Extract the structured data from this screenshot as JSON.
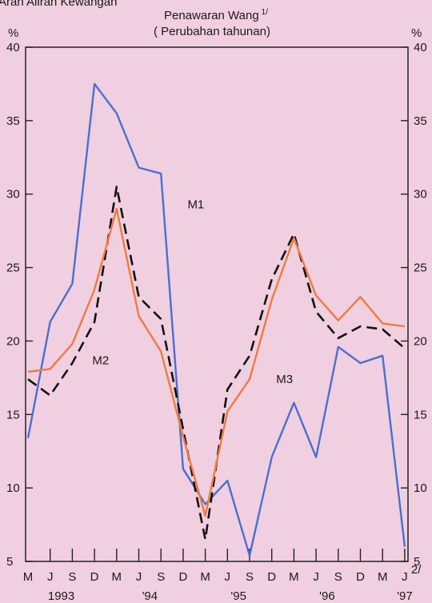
{
  "header": {
    "cut_title": "Aran Aliran Kewangan"
  },
  "chart_data": {
    "type": "line",
    "title": "Penawaran Wang",
    "title_superscript": "1/",
    "subtitle": "( Perubahan tahunan)",
    "ylabel_left": "%",
    "ylabel_right": "%",
    "ylim": [
      5,
      40
    ],
    "yticks": [
      "5",
      "10",
      "15",
      "20",
      "25",
      "30",
      "35",
      "40"
    ],
    "x_tick_labels": [
      "M",
      "J",
      "S",
      "D",
      "M",
      "J",
      "S",
      "D",
      "M",
      "J",
      "S",
      "D",
      "M",
      "J",
      "S",
      "D",
      "M",
      "J"
    ],
    "x_last_superscript": "2/",
    "year_labels": [
      {
        "label": "1993",
        "at_index": 1.5
      },
      {
        "label": "'94",
        "at_index": 5.5
      },
      {
        "label": "'95",
        "at_index": 9.5
      },
      {
        "label": "'96",
        "at_index": 13.5
      },
      {
        "label": "'97",
        "at_index": 17
      }
    ],
    "grid": false,
    "series": [
      {
        "name": "M1",
        "color": "#4a6fd0",
        "dash": "solid",
        "values": [
          13.4,
          21.3,
          23.9,
          37.5,
          35.5,
          31.8,
          31.4,
          11.3,
          8.9,
          10.5,
          5.4,
          12.1,
          15.8,
          12.1,
          19.6,
          18.5,
          19.0,
          6.0
        ]
      },
      {
        "name": "M2",
        "color": "#111111",
        "dash": "dashed",
        "values": [
          17.4,
          16.3,
          18.5,
          21.3,
          30.5,
          23.0,
          21.5,
          14.0,
          6.5,
          16.7,
          19.0,
          24.2,
          27.3,
          22.0,
          20.2,
          21.0,
          20.8,
          19.5
        ]
      },
      {
        "name": "M3",
        "color": "#f07a40",
        "dash": "solid",
        "values": [
          17.9,
          18.1,
          19.8,
          23.5,
          29.0,
          21.7,
          19.3,
          13.5,
          8.1,
          15.2,
          17.4,
          22.8,
          27.0,
          23.1,
          21.4,
          23.0,
          21.2,
          21.0
        ]
      }
    ],
    "series_label_anchors": [
      {
        "name": "M1",
        "x_index": 7.2,
        "y_value": 29.3
      },
      {
        "name": "M2",
        "x_index": 2.9,
        "y_value": 18.7
      },
      {
        "name": "M3",
        "x_index": 11.2,
        "y_value": 17.4
      }
    ]
  }
}
